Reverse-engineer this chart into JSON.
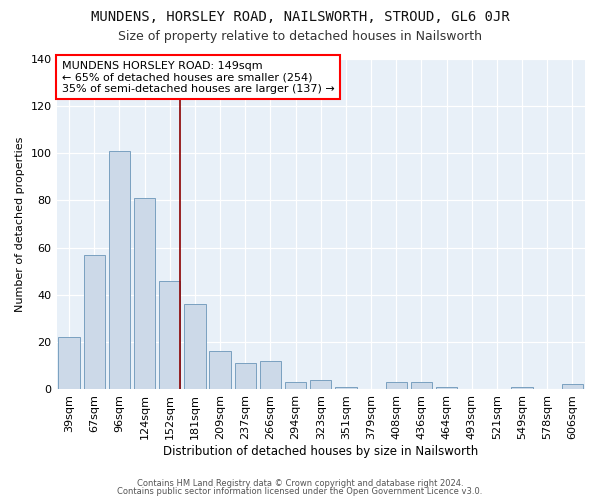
{
  "title": "MUNDENS, HORSLEY ROAD, NAILSWORTH, STROUD, GL6 0JR",
  "subtitle": "Size of property relative to detached houses in Nailsworth",
  "xlabel": "Distribution of detached houses by size in Nailsworth",
  "ylabel": "Number of detached properties",
  "categories": [
    "39sqm",
    "67sqm",
    "96sqm",
    "124sqm",
    "152sqm",
    "181sqm",
    "209sqm",
    "237sqm",
    "266sqm",
    "294sqm",
    "323sqm",
    "351sqm",
    "379sqm",
    "408sqm",
    "436sqm",
    "464sqm",
    "493sqm",
    "521sqm",
    "549sqm",
    "578sqm",
    "606sqm"
  ],
  "values": [
    22,
    57,
    101,
    81,
    46,
    36,
    16,
    11,
    12,
    3,
    4,
    1,
    0,
    3,
    3,
    1,
    0,
    0,
    1,
    0,
    2
  ],
  "bar_color": "#ccd9e8",
  "bar_edge_color": "#7aa0c0",
  "red_line_index": 4,
  "red_line_label": "MUNDENS HORSLEY ROAD: 149sqm",
  "annotation_line1": "← 65% of detached houses are smaller (254)",
  "annotation_line2": "35% of semi-detached houses are larger (137) →",
  "footer1": "Contains HM Land Registry data © Crown copyright and database right 2024.",
  "footer2": "Contains public sector information licensed under the Open Government Licence v3.0.",
  "title_fontsize": 10,
  "subtitle_fontsize": 9,
  "ylim": [
    0,
    140
  ],
  "background_color": "#ffffff",
  "plot_background": "#e8f0f8"
}
